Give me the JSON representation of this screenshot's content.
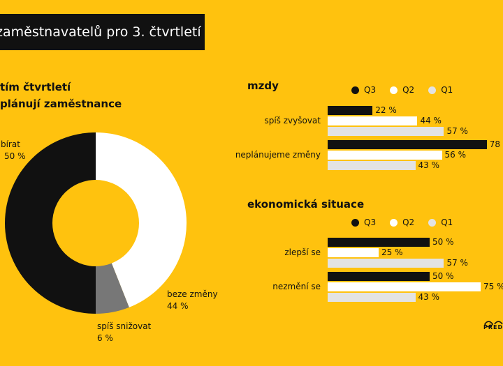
{
  "header": {
    "title": "zaměstnavatelů pro 3. čtvrtletí"
  },
  "donut": {
    "title_line1": "tím čtvrtletí",
    "title_line2": "plánují zaměstnance",
    "colors": {
      "nabirat": "#111111",
      "beze_zmeny": "#FFFFFF",
      "snizovat": "#777777",
      "hole": "#FFC20E"
    }
  },
  "bars": {
    "colors": {
      "Q3": "#111111",
      "Q2": "#FFFFFF",
      "Q1": "#E3E3E3"
    },
    "legend": [
      "Q3",
      "Q2",
      "Q1"
    ]
  },
  "chart_data": [
    {
      "type": "pie",
      "title": "tím čtvrtletí plánují zaměstnance",
      "slices": [
        {
          "label": "nabírat",
          "value": 50,
          "display": "50 %"
        },
        {
          "label": "beze změny",
          "value": 44,
          "display": "44 %"
        },
        {
          "label": "spíš snižovat",
          "value": 6,
          "display": "6 %"
        }
      ]
    },
    {
      "type": "bar",
      "title": "mzdy",
      "categories": [
        "spíš zvyšovat",
        "neplánujeme změny"
      ],
      "series": [
        {
          "name": "Q3",
          "values": [
            22,
            78
          ],
          "labels": [
            "22 %",
            "78"
          ]
        },
        {
          "name": "Q2",
          "values": [
            44,
            56
          ],
          "labels": [
            "44 %",
            "56 %"
          ]
        },
        {
          "name": "Q1",
          "values": [
            57,
            43
          ],
          "labels": [
            "57 %",
            "43 %"
          ]
        }
      ]
    },
    {
      "type": "bar",
      "title": "ekonomická situace",
      "categories": [
        "zlepší se",
        "nezmění se"
      ],
      "series": [
        {
          "name": "Q3",
          "values": [
            50,
            50
          ],
          "labels": [
            "50 %",
            "50 %"
          ]
        },
        {
          "name": "Q2",
          "values": [
            25,
            75
          ],
          "labels": [
            "25 %",
            "75 %"
          ]
        },
        {
          "name": "Q1",
          "values": [
            57,
            43
          ],
          "labels": [
            "57 %",
            "43 %"
          ]
        }
      ]
    }
  ],
  "logo": {
    "text": "PŘED"
  }
}
